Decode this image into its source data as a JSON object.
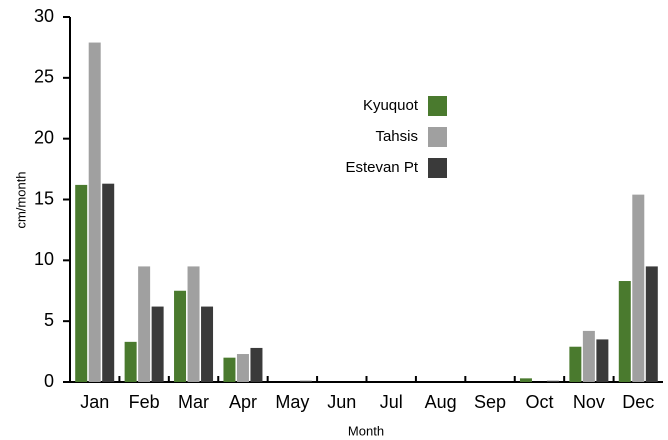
{
  "chart_data": {
    "type": "bar",
    "xlabel": "Month",
    "ylabel": "cm/month",
    "categories": [
      "Jan",
      "Feb",
      "Mar",
      "Apr",
      "May",
      "Jun",
      "Jul",
      "Aug",
      "Sep",
      "Oct",
      "Nov",
      "Dec"
    ],
    "series": [
      {
        "name": "Kyuquot",
        "color": "#4a7a2e",
        "values": [
          16.2,
          3.3,
          7.5,
          2.0,
          0,
          0,
          0,
          0,
          0,
          0.3,
          2.9,
          8.3
        ]
      },
      {
        "name": "Tahsis",
        "color": "#a0a0a0",
        "values": [
          27.9,
          9.5,
          9.5,
          2.3,
          0,
          0,
          0,
          0,
          0,
          0,
          4.2,
          15.4
        ]
      },
      {
        "name": "Estevan Pt",
        "color": "#3a3a3a",
        "values": [
          16.3,
          6.2,
          6.2,
          2.8,
          0.1,
          0,
          0,
          0,
          0,
          0.1,
          3.5,
          9.5
        ]
      }
    ],
    "ylim": [
      0,
      30
    ],
    "yticks": [
      0,
      5,
      10,
      15,
      20,
      25,
      30
    ],
    "legend": "upper center"
  }
}
